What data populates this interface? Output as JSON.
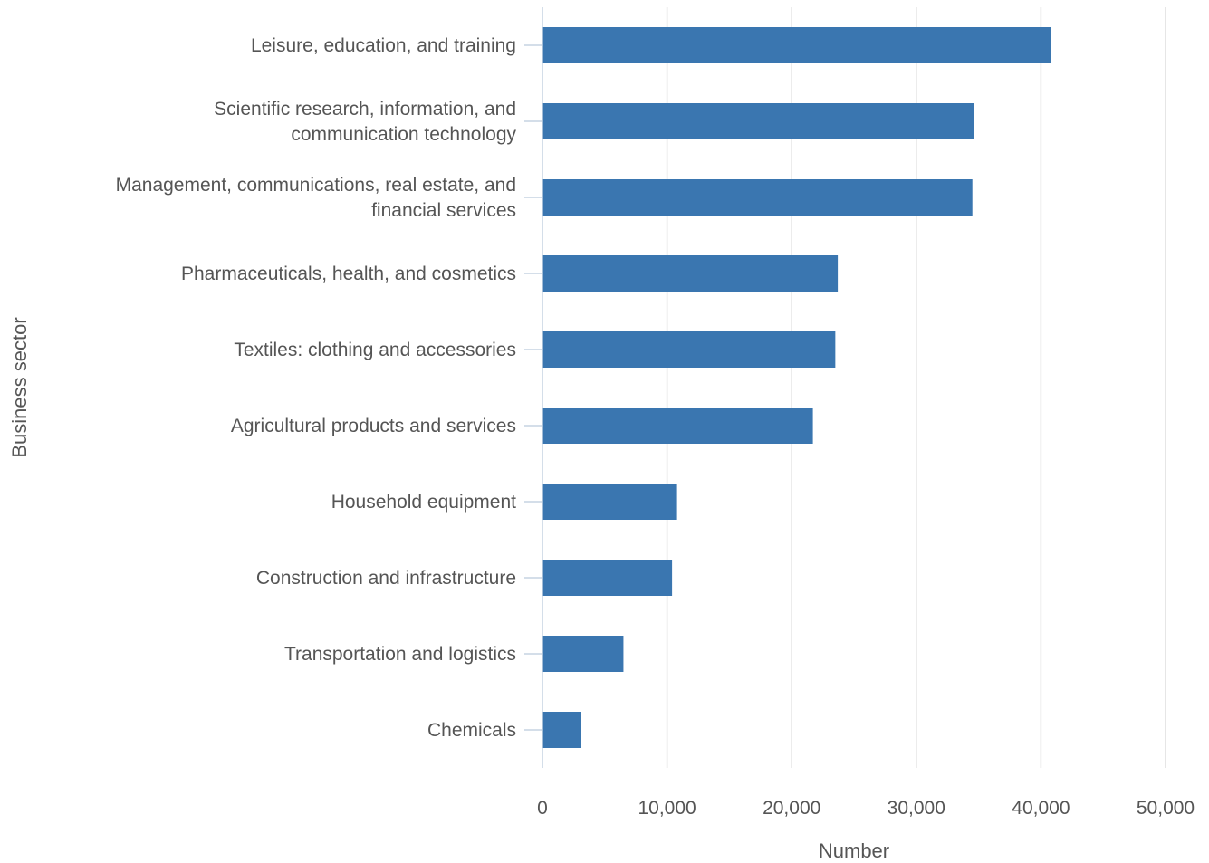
{
  "chart_data": {
    "type": "bar",
    "orientation": "horizontal",
    "xlabel": "Number",
    "ylabel": "Business sector",
    "xlim": [
      0,
      50000
    ],
    "xticks": [
      0,
      10000,
      20000,
      30000,
      40000,
      50000
    ],
    "xtick_labels": [
      "0",
      "10,000",
      "20,000",
      "30,000",
      "40,000",
      "50,000"
    ],
    "grid": "vertical",
    "bar_color": "#3a76b0",
    "categories": [
      [
        "Leisure, education, and training"
      ],
      [
        "Scientific research, information, and",
        "communication technology"
      ],
      [
        "Management, communications, real estate, and",
        "financial services"
      ],
      [
        "Pharmaceuticals, health, and cosmetics"
      ],
      [
        "Textiles: clothing and accessories"
      ],
      [
        "Agricultural products and services"
      ],
      [
        "Household equipment"
      ],
      [
        "Construction and infrastructure"
      ],
      [
        "Transportation and logistics"
      ],
      [
        "Chemicals"
      ]
    ],
    "values": [
      40800,
      34600,
      34500,
      23700,
      23500,
      21700,
      10800,
      10400,
      6500,
      3100
    ]
  }
}
